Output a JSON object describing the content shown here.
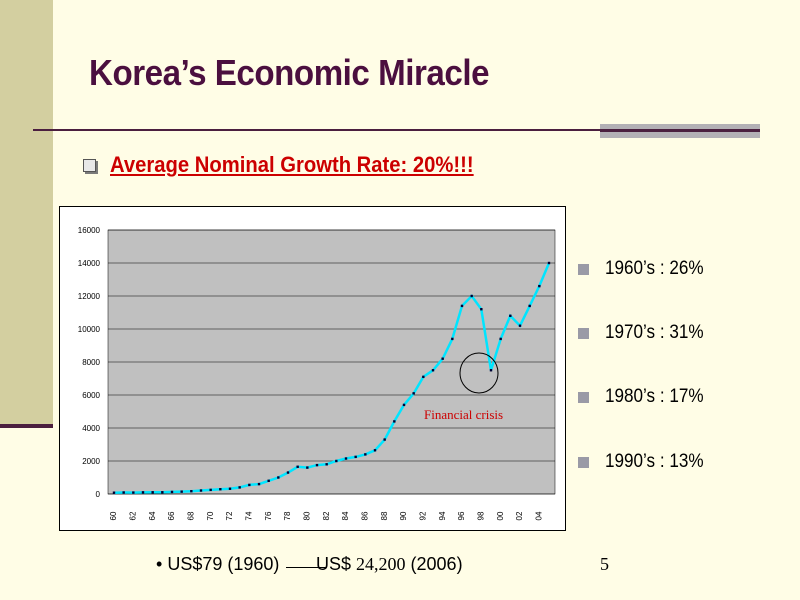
{
  "slide": {
    "title": "Korea’s Economic Miracle",
    "bullet": "Average Nominal Growth Rate: 20%!!!",
    "annotation": "Financial crisis",
    "page_number": "5",
    "footer": {
      "bullet_symbol": "•",
      "from_text": "US$79 (1960)",
      "to_prefix": "US$ ",
      "to_value": "24,200",
      "to_suffix": " (2006)"
    },
    "decades": [
      {
        "label": "1960’s : 26%"
      },
      {
        "label": "1970’s : 31%"
      },
      {
        "label": "1980’s : 17%"
      },
      {
        "label": "1990’s : 13%"
      }
    ],
    "colors": {
      "title": "#4b0f3f",
      "bullet": "#cc0000",
      "line": "#00e5ff",
      "plot_bg": "#c0c0c0",
      "annotation": "#cc0000"
    }
  },
  "chart_data": {
    "type": "line",
    "title": "",
    "xlabel": "",
    "ylabel": "",
    "ylim": [
      0,
      16000
    ],
    "yticks": [
      "0",
      "2000",
      "4000",
      "6000",
      "8000",
      "10000",
      "12000",
      "14000",
      "16000"
    ],
    "xtick_labels": [
      "60",
      "62",
      "64",
      "66",
      "68",
      "70",
      "72",
      "74",
      "76",
      "78",
      "80",
      "82",
      "84",
      "86",
      "88",
      "90",
      "92",
      "94",
      "96",
      "98",
      "00",
      "02",
      "04"
    ],
    "x": [
      1960,
      1961,
      1962,
      1963,
      1964,
      1965,
      1966,
      1967,
      1968,
      1969,
      1970,
      1971,
      1972,
      1973,
      1974,
      1975,
      1976,
      1977,
      1978,
      1979,
      1980,
      1981,
      1982,
      1983,
      1984,
      1985,
      1986,
      1987,
      1988,
      1989,
      1990,
      1991,
      1992,
      1993,
      1994,
      1995,
      1996,
      1997,
      1998,
      1999,
      2000,
      2001,
      2002,
      2003,
      2004,
      2005
    ],
    "series": [
      {
        "values": [
          79,
          92,
          87,
          100,
          104,
          106,
          126,
          143,
          170,
          210,
          250,
          290,
          320,
          400,
          550,
          600,
          800,
          1000,
          1300,
          1650,
          1600,
          1750,
          1800,
          2000,
          2150,
          2250,
          2400,
          2650,
          3300,
          4400,
          5400,
          6100,
          7100,
          7500,
          8200,
          9400,
          11400,
          12000,
          11200,
          7500,
          9400,
          10800,
          10200,
          11400,
          12600,
          14000
        ]
      }
    ],
    "grid": true,
    "legend": "none"
  }
}
